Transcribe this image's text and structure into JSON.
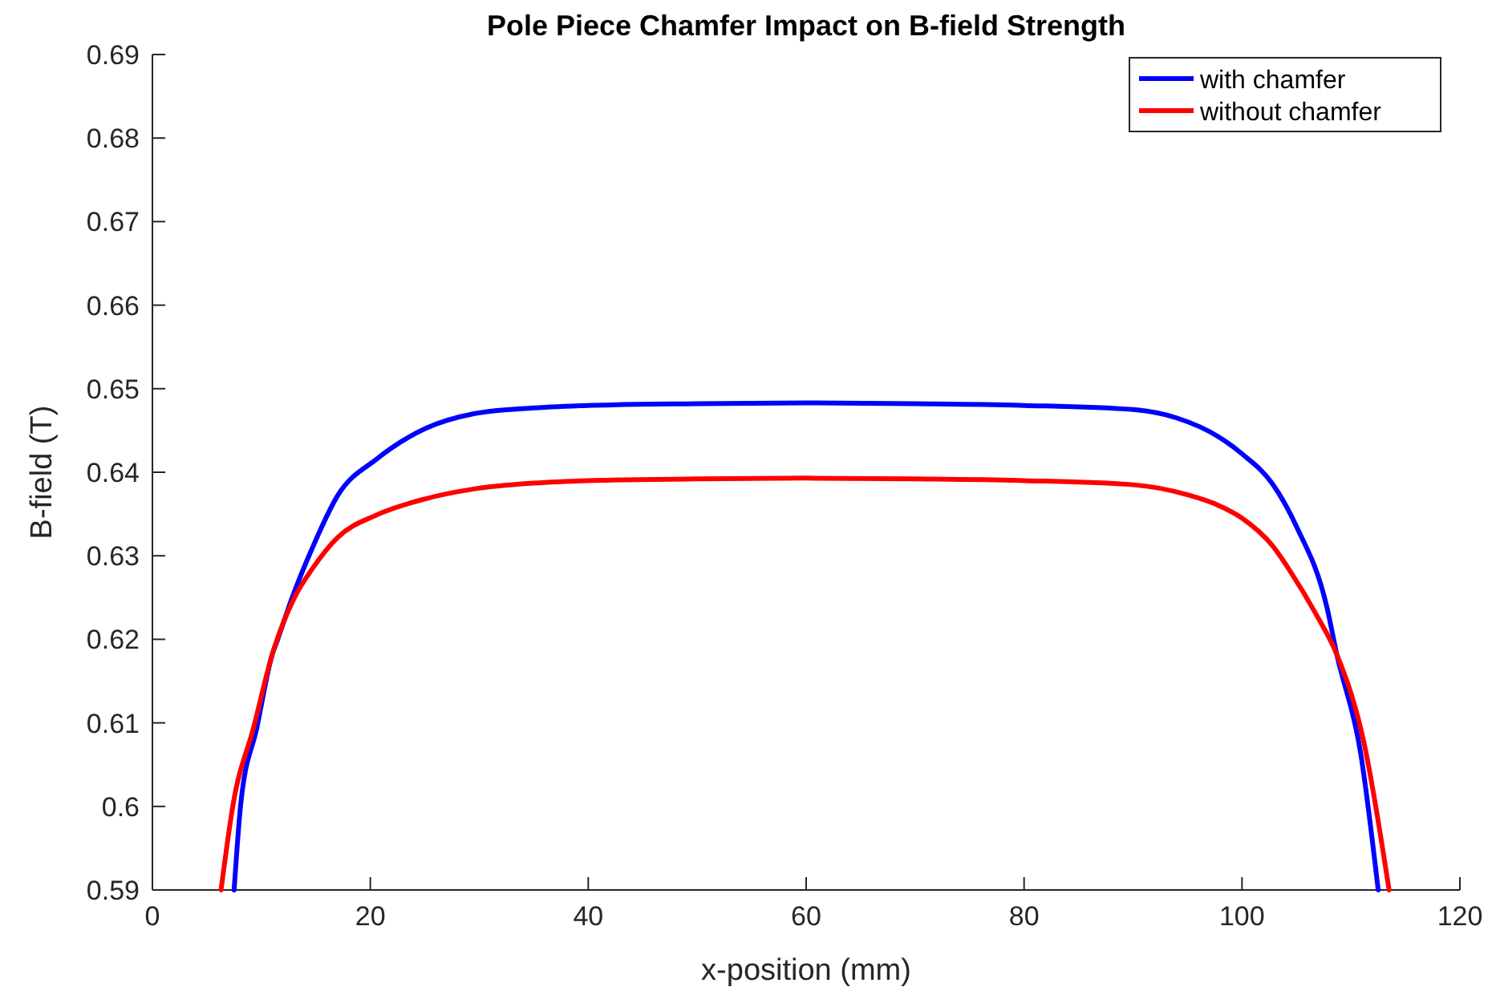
{
  "chart_data": {
    "type": "line",
    "title": "Pole Piece Chamfer Impact on B-field Strength",
    "xlabel": "x-position (mm)",
    "ylabel": "B-field (T)",
    "xlim": [
      0,
      120
    ],
    "xticks": [
      0,
      20,
      40,
      60,
      80,
      100,
      120
    ],
    "ylim": [
      0.59,
      0.69
    ],
    "yticks": [
      0.59,
      0.6,
      0.61,
      0.62,
      0.63,
      0.64,
      0.65,
      0.66,
      0.67,
      0.68,
      0.69
    ],
    "legend": "top right",
    "grid": false,
    "marker": "none",
    "line_style": "solid",
    "series": [
      {
        "name": "with chamfer",
        "color": "#0000ff",
        "x": [
          7.5,
          8.1,
          9.6,
          11.0,
          11.5,
          12.8,
          14.7,
          17,
          20.6,
          25,
          29.5,
          35,
          40,
          50,
          60,
          70,
          80,
          90,
          94,
          97.9,
          100,
          102.8,
          105,
          107.8,
          108.7,
          110.9,
          112.5
        ],
        "values": [
          0.59,
          0.6002,
          0.6095,
          0.6182,
          0.62,
          0.6249,
          0.631,
          0.6372,
          0.6416,
          0.6452,
          0.647,
          0.6477,
          0.648,
          0.6482,
          0.6483,
          0.6482,
          0.648,
          0.6475,
          0.6465,
          0.6442,
          0.6422,
          0.6386,
          0.6335,
          0.6238,
          0.6182,
          0.6063,
          0.59
        ]
      },
      {
        "name": "without chamfer",
        "color": "#ff0000",
        "x": [
          6.3,
          7.4,
          9.3,
          11.0,
          13.0,
          14.7,
          17,
          20.6,
          25,
          29.5,
          35,
          40,
          50,
          60,
          70,
          80,
          90,
          95,
          97.9,
          100,
          102.8,
          104.5,
          106.8,
          108.7,
          111.2,
          113.5
        ],
        "values": [
          0.59,
          0.6002,
          0.6095,
          0.6182,
          0.6249,
          0.6285,
          0.6322,
          0.6349,
          0.6368,
          0.638,
          0.6387,
          0.639,
          0.6392,
          0.6393,
          0.6392,
          0.639,
          0.6385,
          0.6373,
          0.636,
          0.6345,
          0.6312,
          0.628,
          0.623,
          0.6182,
          0.6076,
          0.59
        ]
      }
    ]
  }
}
